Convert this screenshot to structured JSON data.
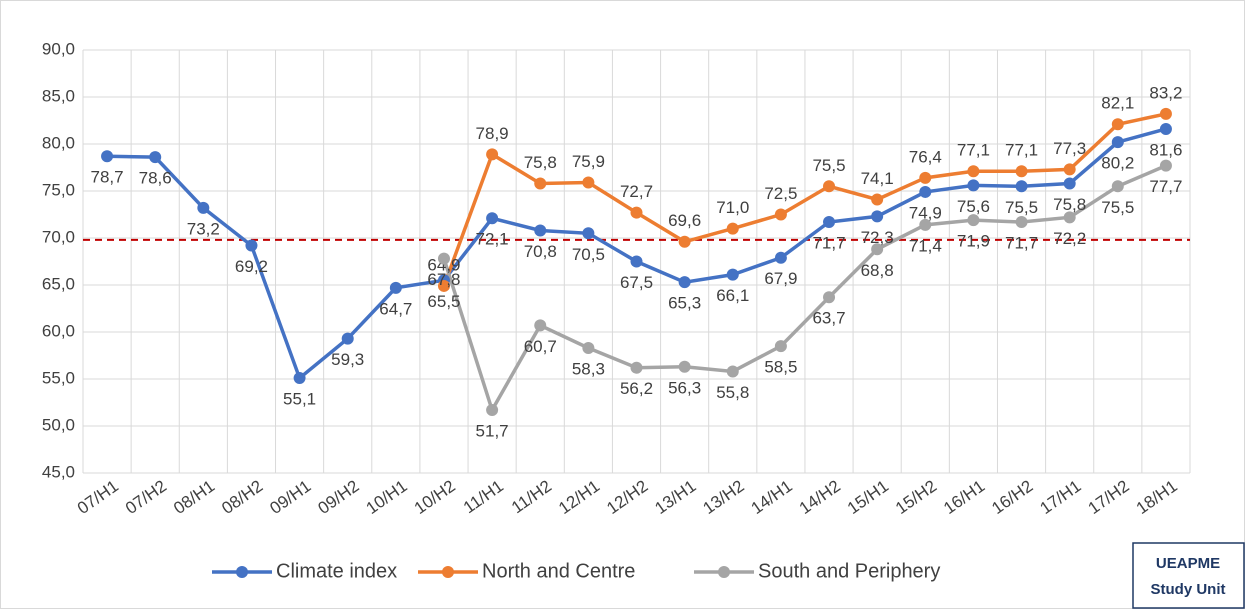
{
  "chart_data": {
    "type": "line",
    "categories": [
      "07/H1",
      "07/H2",
      "08/H1",
      "08/H2",
      "09/H1",
      "09/H2",
      "10/H1",
      "10/H2",
      "11/H1",
      "11/H2",
      "12/H1",
      "12/H2",
      "13/H1",
      "13/H2",
      "14/H1",
      "14/H2",
      "15/H1",
      "15/H2",
      "16/H1",
      "16/H2",
      "17/H1",
      "17/H2",
      "18/H1"
    ],
    "series": [
      {
        "name": "Climate index",
        "color": "#4472c4",
        "values": [
          78.7,
          78.6,
          73.2,
          69.2,
          55.1,
          59.3,
          64.7,
          65.5,
          72.1,
          70.8,
          70.5,
          67.5,
          65.3,
          66.1,
          67.9,
          71.7,
          72.3,
          74.9,
          75.6,
          75.5,
          75.8,
          80.2,
          81.6
        ],
        "value_labels": [
          "78,7",
          "78,6",
          "73,2",
          "69,2",
          "55,1",
          "59,3",
          "64,7",
          "65,5",
          "72,1",
          "70,8",
          "70,5",
          "67,5",
          "65,3",
          "66,1",
          "67,9",
          "71,7",
          "72,3",
          "74,9",
          "75,6",
          "75,5",
          "75,8",
          "80,2",
          "81,6"
        ]
      },
      {
        "name": "North and Centre",
        "color": "#ed7d31",
        "values": [
          null,
          null,
          null,
          null,
          null,
          null,
          null,
          64.9,
          78.9,
          75.8,
          75.9,
          72.7,
          69.6,
          71.0,
          72.5,
          75.5,
          74.1,
          76.4,
          77.1,
          77.1,
          77.3,
          82.1,
          83.2
        ],
        "value_labels": [
          null,
          null,
          null,
          null,
          null,
          null,
          null,
          "64,9",
          "78,9",
          "75,8",
          "75,9",
          "72,7",
          "69,6",
          "71,0",
          "72,5",
          "75,5",
          "74,1",
          "76,4",
          "77,1",
          "77,1",
          "77,3",
          "82,1",
          "83,2"
        ]
      },
      {
        "name": "South and Periphery",
        "color": "#a5a5a5",
        "values": [
          null,
          null,
          null,
          null,
          null,
          null,
          null,
          67.8,
          51.7,
          60.7,
          58.3,
          56.2,
          56.3,
          55.8,
          58.5,
          63.7,
          68.8,
          71.4,
          71.9,
          71.7,
          72.2,
          75.5,
          77.7
        ],
        "value_labels": [
          null,
          null,
          null,
          null,
          null,
          null,
          null,
          "67,8",
          "51,7",
          "60,7",
          "58,3",
          "56,2",
          "56,3",
          "55,8",
          "58,5",
          "63,7",
          "68,8",
          "71,4",
          "71,9",
          "71,7",
          "72,2",
          "75,5",
          "77,7"
        ]
      }
    ],
    "ylim": [
      45,
      90
    ],
    "yticks": [
      {
        "value": 45,
        "label": "45,0"
      },
      {
        "value": 50,
        "label": "50,0"
      },
      {
        "value": 55,
        "label": "55,0"
      },
      {
        "value": 60,
        "label": "60,0"
      },
      {
        "value": 65,
        "label": "65,0"
      },
      {
        "value": 70,
        "label": "70,0"
      },
      {
        "value": 75,
        "label": "75,0"
      },
      {
        "value": 80,
        "label": "80,0"
      },
      {
        "value": 85,
        "label": "85,0"
      },
      {
        "value": 90,
        "label": "90,0"
      }
    ],
    "reference_line": {
      "value": 69.8,
      "color": "#c00000"
    },
    "grid": true,
    "legend": "bottom"
  },
  "badge": {
    "line1": "UEAPME",
    "line2": "Study Unit"
  }
}
